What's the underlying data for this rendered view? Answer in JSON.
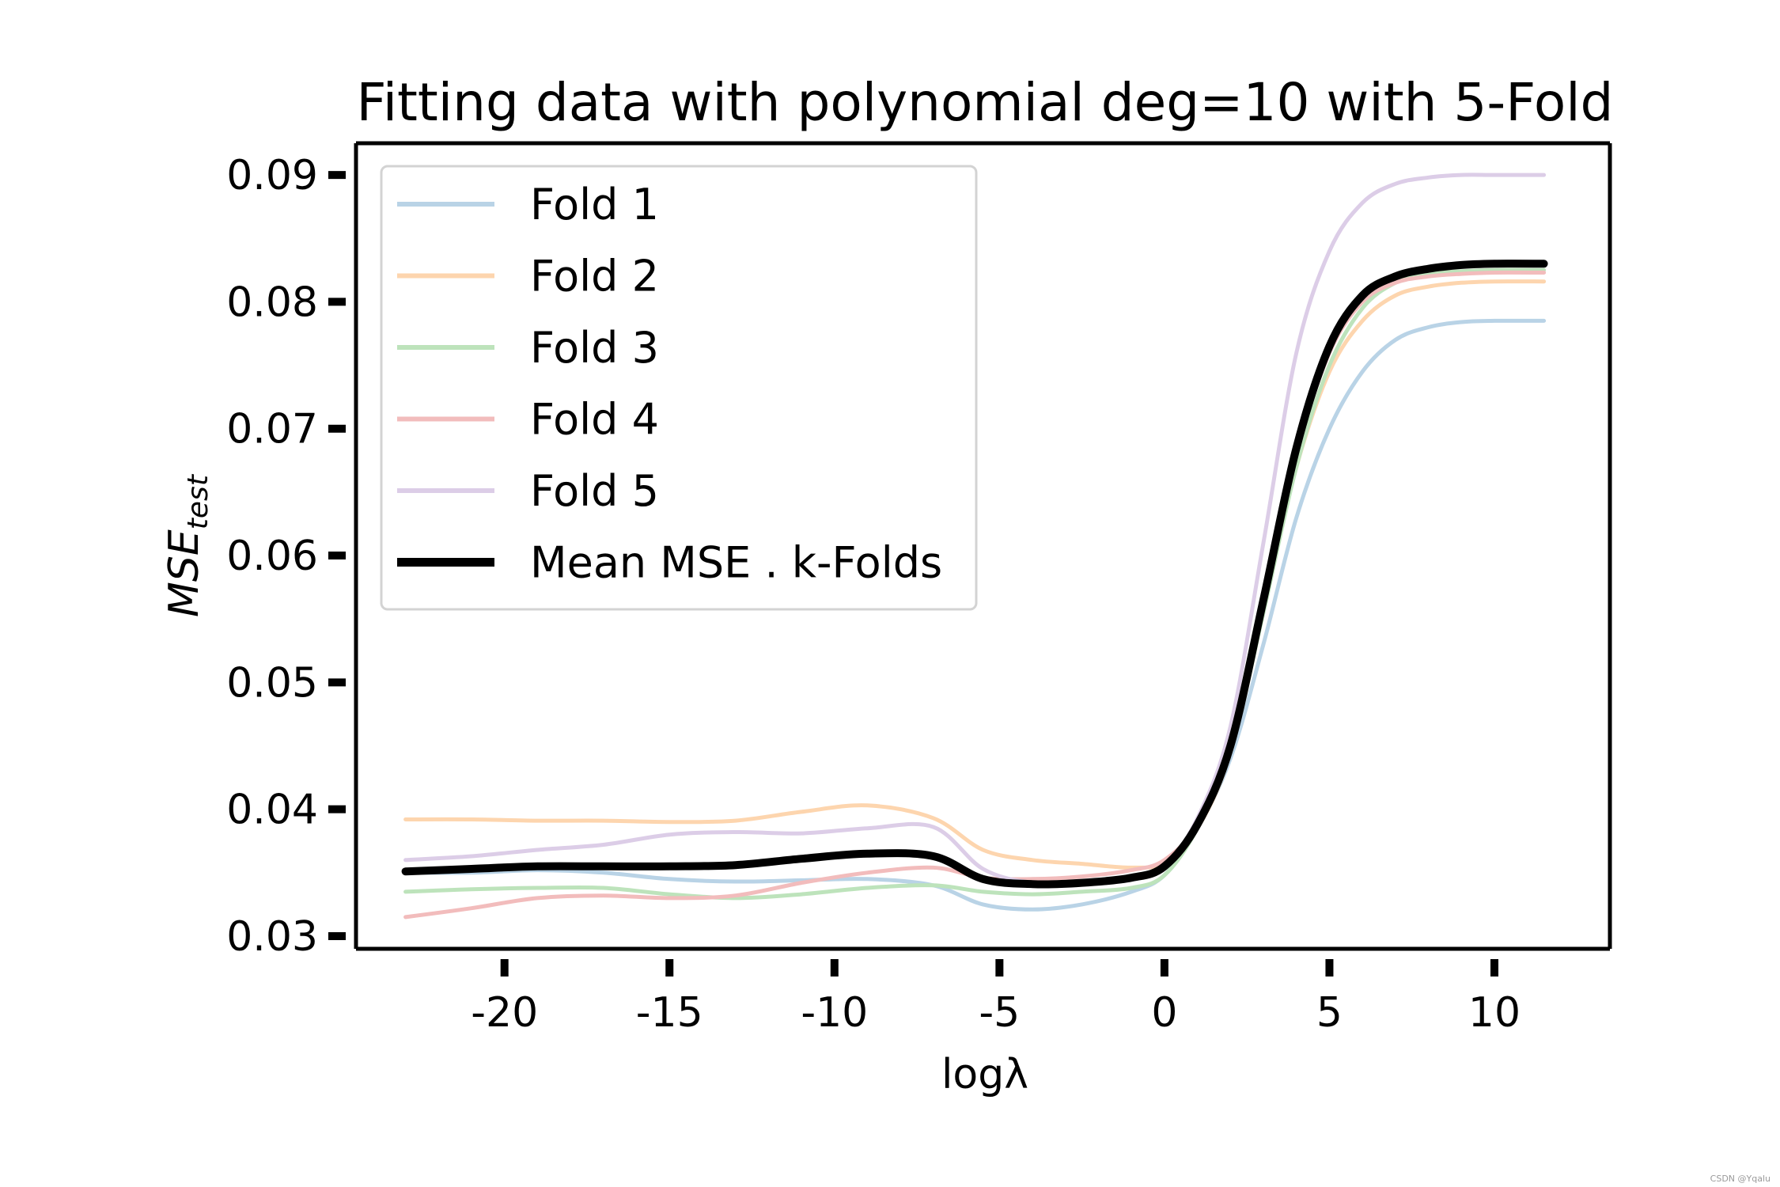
{
  "chart_data": {
    "type": "line",
    "title": "Fitting data with polynomial deg=10 with 5-Fold",
    "xlabel": "logλ",
    "ylabel_main": "MSE",
    "ylabel_sub": "test",
    "xlim": [
      -24.5,
      13.5
    ],
    "ylim": [
      0.029,
      0.0925
    ],
    "xticks": [
      -20,
      -15,
      -10,
      -5,
      0,
      5,
      10
    ],
    "xtick_labels": [
      "-20",
      "-15",
      "-10",
      "-5",
      "0",
      "5",
      "10"
    ],
    "yticks": [
      0.03,
      0.04,
      0.05,
      0.06,
      0.07,
      0.08,
      0.09
    ],
    "ytick_labels": [
      "0.03",
      "0.04",
      "0.05",
      "0.06",
      "0.07",
      "0.08",
      "0.09"
    ],
    "grid": false,
    "legend_position": "top-left",
    "x": [
      -23,
      -21,
      -19,
      -17,
      -15,
      -13,
      -11,
      -9,
      -7,
      -5.5,
      -4,
      -2.5,
      -1,
      0,
      1,
      2,
      3,
      4,
      5,
      6,
      7,
      8,
      9,
      10,
      11.5
    ],
    "series": [
      {
        "name": "Fold 1",
        "color": "#b9d3e6",
        "width": 5,
        "values": [
          0.035,
          0.035,
          0.0352,
          0.035,
          0.0345,
          0.0343,
          0.0344,
          0.0345,
          0.034,
          0.0325,
          0.0321,
          0.0325,
          0.0335,
          0.0348,
          0.0385,
          0.044,
          0.053,
          0.063,
          0.07,
          0.0745,
          0.077,
          0.078,
          0.0784,
          0.0785,
          0.0785
        ]
      },
      {
        "name": "Fold 2",
        "color": "#fdd5ae",
        "width": 5,
        "values": [
          0.0392,
          0.0392,
          0.0391,
          0.0391,
          0.039,
          0.0391,
          0.0398,
          0.0403,
          0.0393,
          0.0368,
          0.036,
          0.0357,
          0.0354,
          0.0358,
          0.0385,
          0.0445,
          0.056,
          0.067,
          0.0745,
          0.0785,
          0.0805,
          0.0812,
          0.0815,
          0.0816,
          0.0816
        ]
      },
      {
        "name": "Fold 3",
        "color": "#bde3bb",
        "width": 5,
        "values": [
          0.0335,
          0.0337,
          0.0338,
          0.0338,
          0.0333,
          0.033,
          0.0333,
          0.0338,
          0.034,
          0.0335,
          0.0333,
          0.0335,
          0.0338,
          0.0348,
          0.0385,
          0.0445,
          0.0555,
          0.067,
          0.075,
          0.0795,
          0.0815,
          0.0822,
          0.0824,
          0.0825,
          0.0825
        ]
      },
      {
        "name": "Fold 4",
        "color": "#f2bcbc",
        "width": 5,
        "values": [
          0.0315,
          0.0322,
          0.033,
          0.0332,
          0.033,
          0.0332,
          0.0342,
          0.035,
          0.0354,
          0.0346,
          0.0345,
          0.0347,
          0.0352,
          0.036,
          0.0388,
          0.0448,
          0.056,
          0.068,
          0.076,
          0.08,
          0.0815,
          0.082,
          0.0822,
          0.0823,
          0.0823
        ]
      },
      {
        "name": "Fold 5",
        "color": "#dccde7",
        "width": 5,
        "values": [
          0.036,
          0.0363,
          0.0368,
          0.0372,
          0.038,
          0.0382,
          0.0381,
          0.0385,
          0.0386,
          0.0353,
          0.0342,
          0.0342,
          0.0346,
          0.0355,
          0.0393,
          0.0465,
          0.061,
          0.076,
          0.084,
          0.0878,
          0.0893,
          0.0898,
          0.09,
          0.09,
          0.09
        ]
      },
      {
        "name": "Mean MSE . k-Folds",
        "color": "#000000",
        "width": 10,
        "values": [
          0.0351,
          0.0353,
          0.0355,
          0.0355,
          0.0355,
          0.0356,
          0.0361,
          0.0365,
          0.0363,
          0.0345,
          0.0341,
          0.0342,
          0.0346,
          0.0355,
          0.0388,
          0.045,
          0.0565,
          0.0685,
          0.0765,
          0.0805,
          0.082,
          0.0826,
          0.0829,
          0.083,
          0.083
        ]
      }
    ]
  },
  "watermark": "CSDN @Yqalu"
}
